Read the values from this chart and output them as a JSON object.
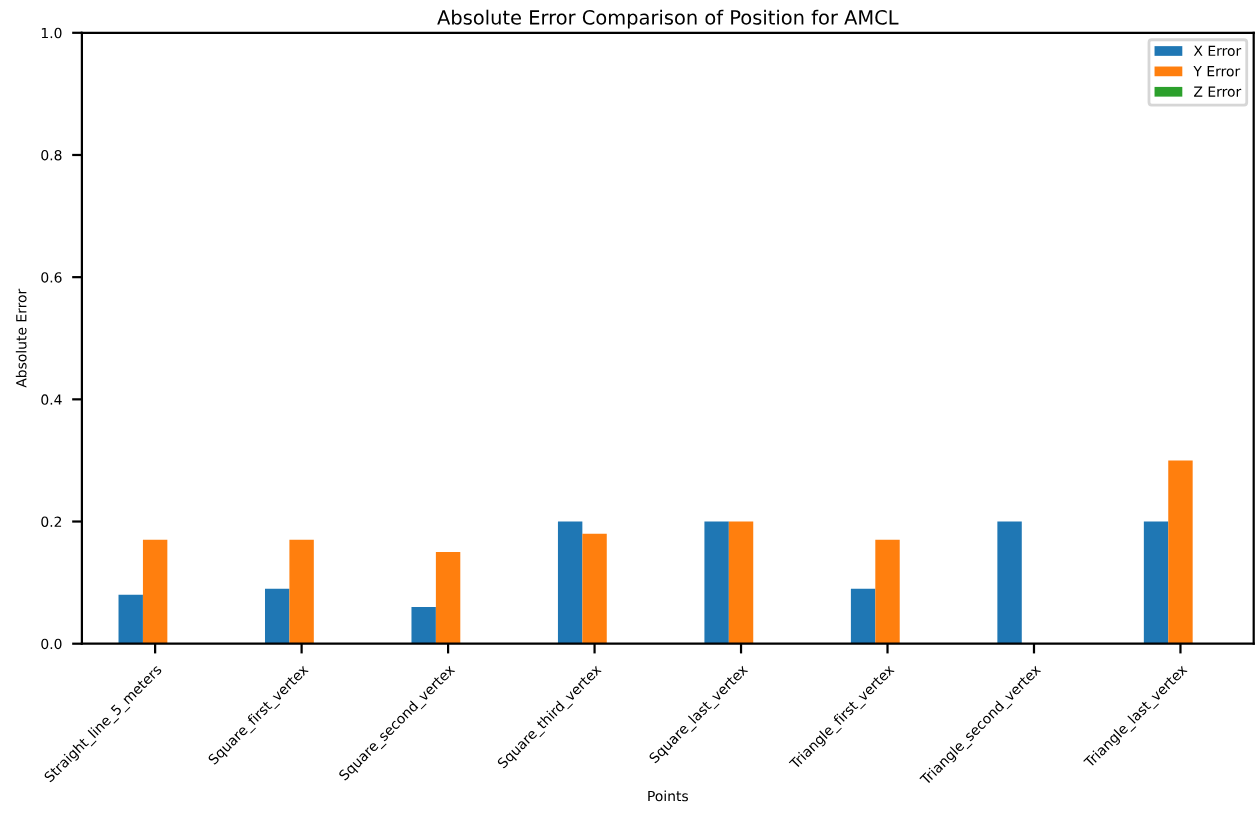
{
  "chart_data": {
    "type": "bar",
    "title": "Absolute Error Comparison of Position for AMCL",
    "xlabel": "Points",
    "ylabel": "Absolute Error",
    "categories": [
      "Straight_line_5_meters",
      "Square_first_vertex",
      "Square_second_vertex",
      "Square_third_vertex",
      "Square_last_vertex",
      "Triangle_first_vertex",
      "Triangle_second_vertex",
      "Triangle_last_vertex"
    ],
    "series": [
      {
        "name": "X Error",
        "color": "#1f77b4",
        "values": [
          0.08,
          0.09,
          0.06,
          0.2,
          0.2,
          0.09,
          0.2,
          0.2
        ]
      },
      {
        "name": "Y Error",
        "color": "#ff7f0e",
        "values": [
          0.17,
          0.17,
          0.15,
          0.18,
          0.2,
          0.17,
          0.0,
          0.3
        ]
      },
      {
        "name": "Z Error",
        "color": "#2ca02c",
        "values": [
          0,
          0,
          0,
          0,
          0,
          0,
          0,
          0
        ]
      }
    ],
    "ylim": [
      0,
      1.0
    ],
    "yticks": [
      {
        "value": 0,
        "label": "0.0"
      },
      0.2,
      0.4,
      0.6,
      0.8,
      {
        "value": 1,
        "label": "1.0"
      }
    ],
    "legend": "top right",
    "grid": false
  }
}
